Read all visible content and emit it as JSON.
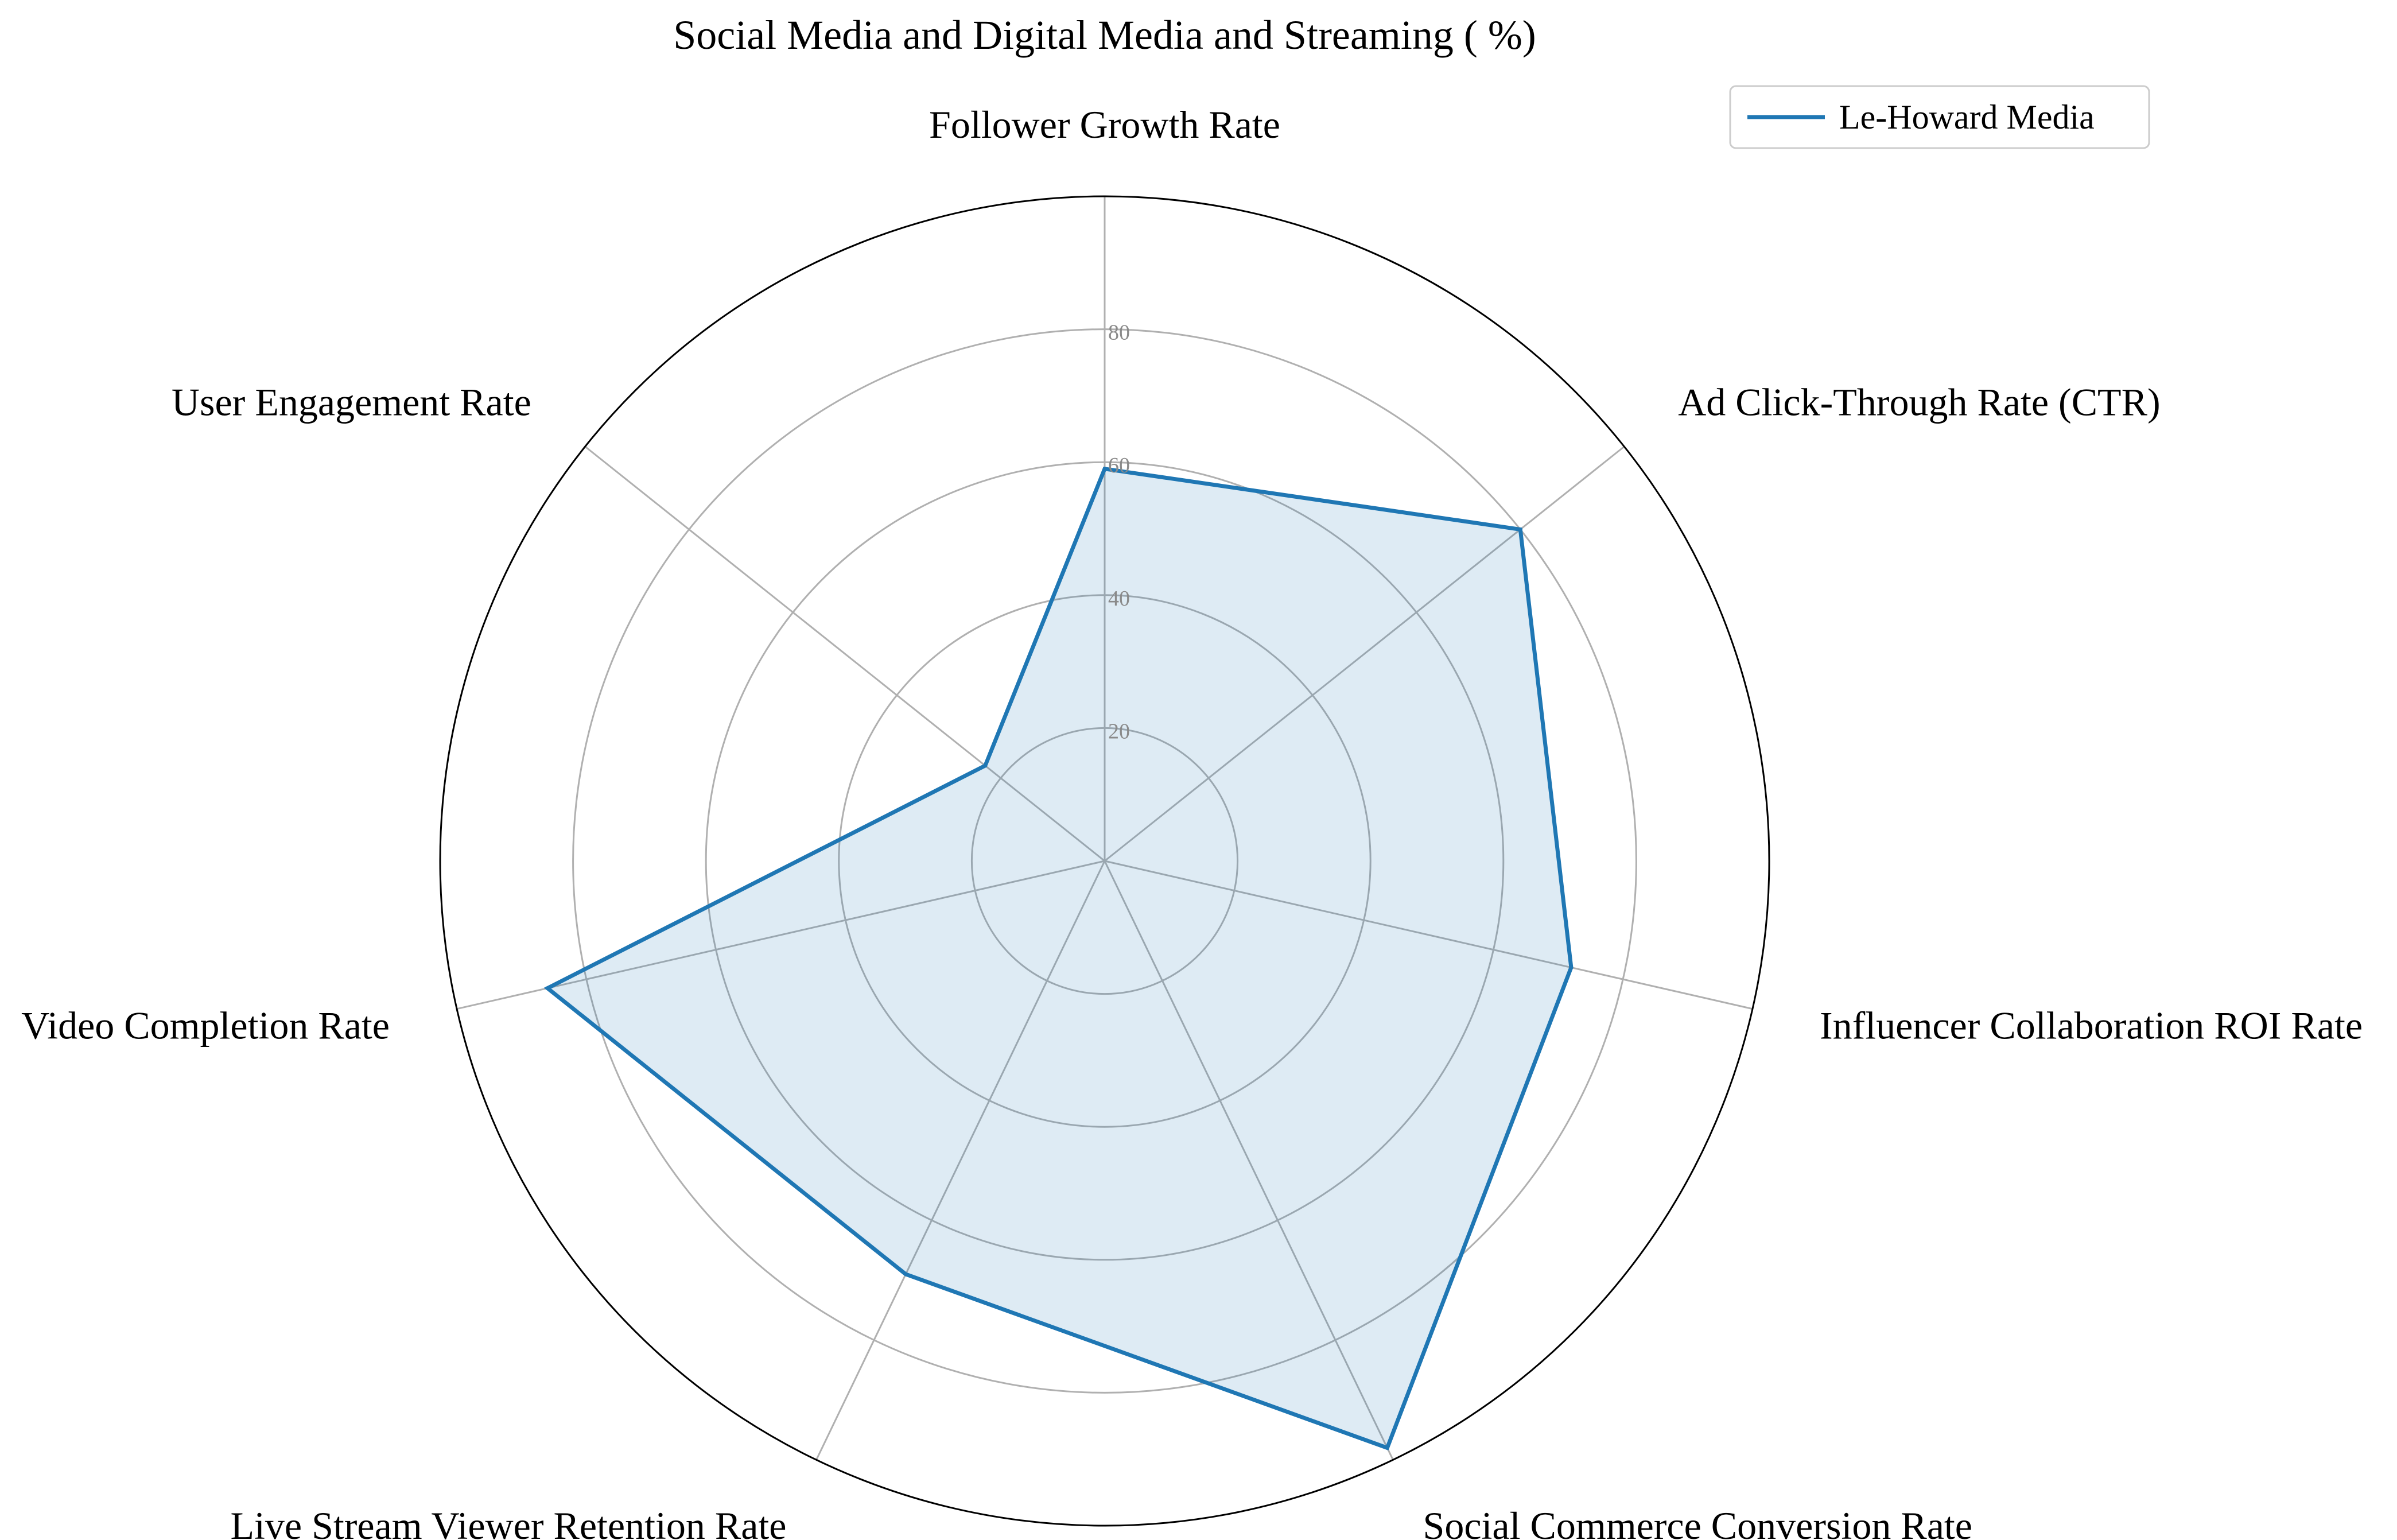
{
  "chart_data": {
    "type": "radar",
    "title": "Social Media and Digital Media and Streaming ( %)",
    "categories": [
      "Follower Growth Rate",
      "Ad Click-Through Rate (CTR)",
      "Influencer Collaboration ROI Rate",
      "Social Commerce Conversion Rate",
      "Live Stream Viewer Retention Rate",
      "Video Completion Rate",
      "User Engagement Rate"
    ],
    "series": [
      {
        "name": "Le-Howard Media",
        "values": [
          59,
          80,
          72,
          98,
          69,
          86,
          23
        ]
      }
    ],
    "r_ticks": [
      "20",
      "40",
      "60",
      "80"
    ],
    "r_tick_values": [
      20,
      40,
      60,
      80
    ],
    "rlim": [
      0,
      100
    ],
    "grid": true,
    "legend": "top-right",
    "colors": {
      "line": "#1f77b4",
      "fill": "#1f77b4",
      "grid": "#b0b0b0",
      "frame": "#000000"
    }
  }
}
